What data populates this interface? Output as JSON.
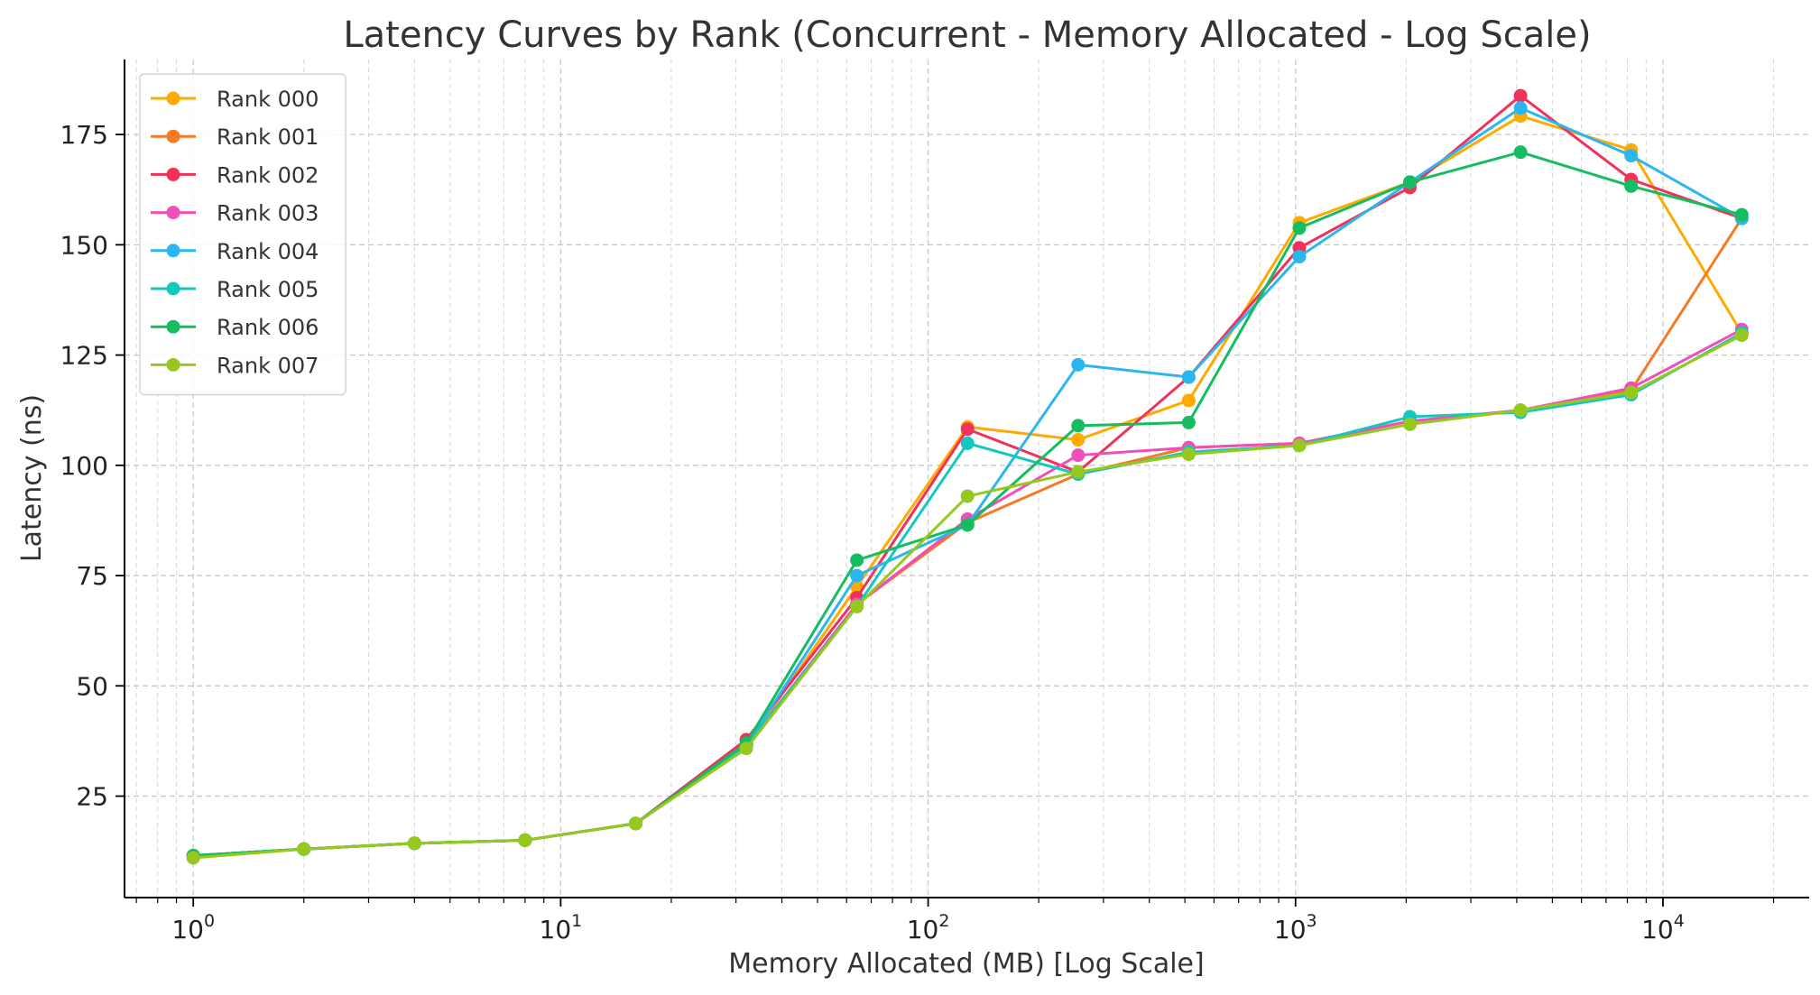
{
  "chart_data": {
    "type": "line",
    "title": "Latency Curves by Rank (Concurrent - Memory Allocated - Log Scale)",
    "xlabel": "Memory Allocated (MB) [Log Scale]",
    "ylabel": "Latency (ns)",
    "xscale": "log",
    "xlim": [
      0.65,
      25000
    ],
    "ylim": [
      2,
      192
    ],
    "grid": true,
    "legend": "top-left",
    "x_ticks": [
      {
        "value": 1,
        "base": "10",
        "exp": "0"
      },
      {
        "value": 10,
        "base": "10",
        "exp": "1"
      },
      {
        "value": 100,
        "base": "10",
        "exp": "2"
      },
      {
        "value": 1000,
        "base": "10",
        "exp": "3"
      },
      {
        "value": 10000,
        "base": "10",
        "exp": "4"
      }
    ],
    "y_ticks": [
      25,
      50,
      75,
      100,
      125,
      150,
      175
    ],
    "x": [
      1,
      2,
      4,
      8,
      16,
      32,
      64,
      128,
      256,
      512,
      1024,
      2048,
      4096,
      8192,
      16384
    ],
    "series": [
      {
        "name": "Rank 000",
        "color": "#FFAA00",
        "values": [
          11.5,
          13.0,
          14.3,
          15.0,
          18.8,
          36.5,
          72.5,
          108.7,
          105.8,
          114.7,
          155.0,
          164.2,
          179.2,
          171.5,
          130.0
        ]
      },
      {
        "name": "Rank 001",
        "color": "#F57A23",
        "values": [
          11.5,
          13.0,
          14.3,
          15.0,
          18.8,
          36.0,
          68.5,
          87.0,
          98.0,
          104.0,
          105.0,
          110.0,
          112.5,
          117.0,
          156.0
        ]
      },
      {
        "name": "Rank 002",
        "color": "#F0325A",
        "values": [
          11.5,
          13.0,
          14.3,
          15.0,
          18.8,
          37.8,
          70.0,
          108.2,
          98.5,
          120.0,
          149.3,
          163.0,
          183.8,
          164.8,
          156.0
        ]
      },
      {
        "name": "Rank 003",
        "color": "#F04FB9",
        "values": [
          11.5,
          13.0,
          14.3,
          15.0,
          18.8,
          36.5,
          68.5,
          87.8,
          102.3,
          104.0,
          105.0,
          110.0,
          112.5,
          117.5,
          130.8
        ]
      },
      {
        "name": "Rank 004",
        "color": "#2BB6F0",
        "values": [
          11.5,
          13.0,
          14.3,
          15.0,
          18.8,
          36.5,
          75.0,
          86.5,
          122.8,
          120.0,
          147.3,
          164.2,
          181.0,
          170.2,
          156.0
        ]
      },
      {
        "name": "Rank 005",
        "color": "#14C8C0",
        "values": [
          11.5,
          13.0,
          14.3,
          15.0,
          18.8,
          36.5,
          68.0,
          105.0,
          98.0,
          103.0,
          104.5,
          111.0,
          112.0,
          116.0,
          130.0
        ]
      },
      {
        "name": "Rank 006",
        "color": "#14BD5F",
        "values": [
          11.5,
          13.0,
          14.3,
          15.0,
          18.8,
          37.0,
          78.5,
          86.5,
          109.0,
          109.7,
          153.8,
          164.2,
          171.0,
          163.3,
          156.8
        ]
      },
      {
        "name": "Rank 007",
        "color": "#96C81E",
        "values": [
          11.0,
          13.0,
          14.3,
          15.0,
          18.8,
          35.8,
          68.0,
          93.0,
          98.5,
          102.5,
          104.5,
          109.3,
          112.5,
          116.5,
          129.5
        ]
      }
    ]
  }
}
